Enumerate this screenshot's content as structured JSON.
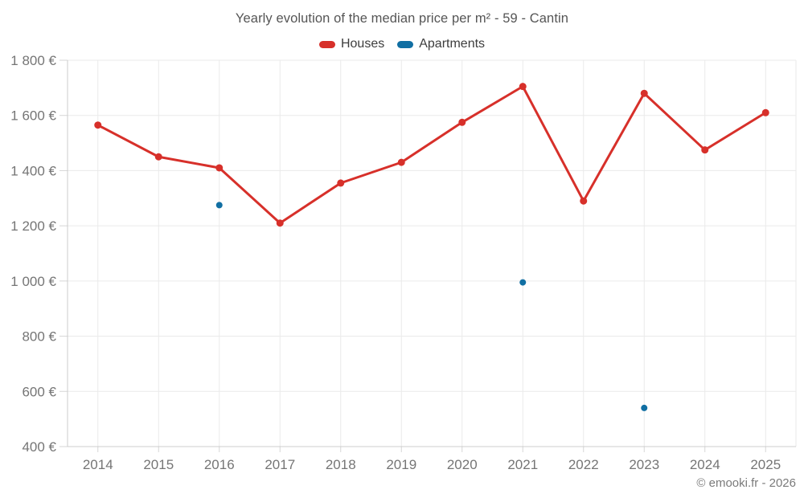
{
  "title": "Yearly evolution of the median price per m² - 59 - Cantin",
  "legend": [
    {
      "label": "Houses",
      "color": "#d7302a"
    },
    {
      "label": "Apartments",
      "color": "#116fa3"
    }
  ],
  "footer": "© emooki.fr - 2026",
  "chart_data": {
    "type": "line",
    "title": "Yearly evolution of the median price per m² - 59 - Cantin",
    "categories": [
      "2014",
      "2015",
      "2016",
      "2017",
      "2018",
      "2019",
      "2020",
      "2021",
      "2022",
      "2023",
      "2024",
      "2025"
    ],
    "series": [
      {
        "name": "Houses",
        "type": "line",
        "color": "#d7302a",
        "values": [
          1565,
          1450,
          1410,
          1210,
          1355,
          1430,
          1575,
          1705,
          1290,
          1680,
          1475,
          1610
        ]
      },
      {
        "name": "Apartments",
        "type": "scatter",
        "color": "#116fa3",
        "values": [
          null,
          null,
          1275,
          null,
          null,
          null,
          null,
          995,
          null,
          540,
          null,
          null
        ]
      }
    ],
    "xlabel": "",
    "ylabel": "",
    "ylim": [
      400,
      1800
    ],
    "ytick_step": 200,
    "ytick_suffix": " €",
    "ytick_thousands_separator": " ",
    "grid": true,
    "legend_position": "top"
  }
}
